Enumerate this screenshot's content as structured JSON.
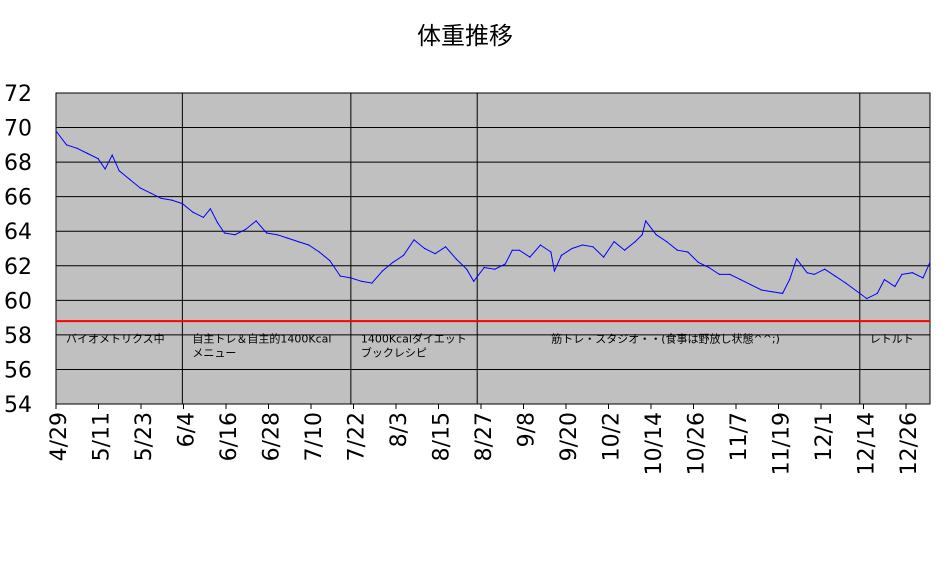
{
  "chart_data": {
    "type": "line",
    "title": "体重推移",
    "xlabel": "",
    "ylabel": "",
    "ylim": [
      54,
      72
    ],
    "yticks": [
      72,
      70,
      68,
      66,
      64,
      62,
      60,
      58,
      56,
      54
    ],
    "x_start": "4/29",
    "x_end": "1/3",
    "x_tick_labels": [
      "4/29",
      "5/11",
      "5/23",
      "6/4",
      "6/16",
      "6/28",
      "7/10",
      "7/22",
      "8/3",
      "8/15",
      "8/27",
      "9/8",
      "9/20",
      "10/2",
      "10/14",
      "10/26",
      "11/7",
      "11/19",
      "12/1",
      "12/14",
      "12/26"
    ],
    "grid": true,
    "plot_background": "#c0c0c0",
    "series": [
      {
        "color": "#0000ff",
        "points": [
          [
            "4/29",
            69.8
          ],
          [
            "5/2",
            69.0
          ],
          [
            "5/5",
            68.8
          ],
          [
            "5/8",
            68.5
          ],
          [
            "5/11",
            68.2
          ],
          [
            "5/13",
            67.6
          ],
          [
            "5/15",
            68.4
          ],
          [
            "5/17",
            67.5
          ],
          [
            "5/20",
            67.0
          ],
          [
            "5/23",
            66.5
          ],
          [
            "5/26",
            66.2
          ],
          [
            "5/29",
            65.9
          ],
          [
            "6/1",
            65.8
          ],
          [
            "6/4",
            65.6
          ],
          [
            "6/7",
            65.1
          ],
          [
            "6/10",
            64.8
          ],
          [
            "6/12",
            65.3
          ],
          [
            "6/14",
            64.5
          ],
          [
            "6/16",
            63.9
          ],
          [
            "6/19",
            63.8
          ],
          [
            "6/22",
            64.1
          ],
          [
            "6/25",
            64.6
          ],
          [
            "6/28",
            63.9
          ],
          [
            "7/1",
            63.8
          ],
          [
            "7/4",
            63.6
          ],
          [
            "7/7",
            63.4
          ],
          [
            "7/10",
            63.2
          ],
          [
            "7/13",
            62.8
          ],
          [
            "7/16",
            62.3
          ],
          [
            "7/19",
            61.4
          ],
          [
            "7/22",
            61.3
          ],
          [
            "7/25",
            61.1
          ],
          [
            "7/28",
            61.0
          ],
          [
            "7/31",
            61.7
          ],
          [
            "8/3",
            62.2
          ],
          [
            "8/6",
            62.6
          ],
          [
            "8/9",
            63.5
          ],
          [
            "8/12",
            63.0
          ],
          [
            "8/15",
            62.7
          ],
          [
            "8/18",
            63.1
          ],
          [
            "8/21",
            62.4
          ],
          [
            "8/24",
            61.8
          ],
          [
            "8/26",
            61.1
          ],
          [
            "8/29",
            61.9
          ],
          [
            "9/1",
            61.8
          ],
          [
            "9/4",
            62.1
          ],
          [
            "9/6",
            62.9
          ],
          [
            "9/8",
            62.9
          ],
          [
            "9/11",
            62.5
          ],
          [
            "9/14",
            63.2
          ],
          [
            "9/17",
            62.8
          ],
          [
            "9/18",
            61.7
          ],
          [
            "9/20",
            62.6
          ],
          [
            "9/23",
            63.0
          ],
          [
            "9/26",
            63.2
          ],
          [
            "9/29",
            63.1
          ],
          [
            "10/2",
            62.5
          ],
          [
            "10/5",
            63.4
          ],
          [
            "10/8",
            62.9
          ],
          [
            "10/11",
            63.4
          ],
          [
            "10/13",
            63.8
          ],
          [
            "10/14",
            64.6
          ],
          [
            "10/17",
            63.8
          ],
          [
            "10/20",
            63.4
          ],
          [
            "10/23",
            62.9
          ],
          [
            "10/26",
            62.8
          ],
          [
            "10/29",
            62.2
          ],
          [
            "11/1",
            61.9
          ],
          [
            "11/4",
            61.5
          ],
          [
            "11/7",
            61.5
          ],
          [
            "11/10",
            61.2
          ],
          [
            "11/13",
            60.9
          ],
          [
            "11/16",
            60.6
          ],
          [
            "11/19",
            60.5
          ],
          [
            "11/22",
            60.4
          ],
          [
            "11/24",
            61.2
          ],
          [
            "11/26",
            62.4
          ],
          [
            "11/29",
            61.6
          ],
          [
            "12/1",
            61.5
          ],
          [
            "12/4",
            61.8
          ],
          [
            "12/7",
            61.4
          ],
          [
            "12/10",
            61.0
          ],
          [
            "12/14",
            60.4
          ],
          [
            "12/16",
            60.1
          ],
          [
            "12/19",
            60.4
          ],
          [
            "12/21",
            61.2
          ],
          [
            "12/24",
            60.8
          ],
          [
            "12/26",
            61.5
          ],
          [
            "12/29",
            61.6
          ],
          [
            "1/1",
            61.3
          ],
          [
            "1/3",
            62.2
          ]
        ]
      }
    ],
    "reference_lines": [
      {
        "y": 58.8,
        "color": "#ff0000"
      }
    ],
    "phase_dividers": [
      "6/4",
      "7/22",
      "8/27",
      "12/14"
    ],
    "phases": [
      {
        "start": "4/29",
        "label_lines": [
          "バイオメトリクス中"
        ]
      },
      {
        "start": "6/4",
        "label_lines": [
          "自主トレ＆自主的1400Kcal",
          "メニュー"
        ]
      },
      {
        "start": "7/22",
        "label_lines": [
          "1400Kcalダイエット",
          "ブックレシピ"
        ]
      },
      {
        "start": "8/27",
        "label_lines": [
          "筋トレ・スタジオ・・(食事は野放し状態^^;)"
        ]
      },
      {
        "start": "12/14",
        "label_lines": [
          "レトルト"
        ]
      }
    ]
  }
}
